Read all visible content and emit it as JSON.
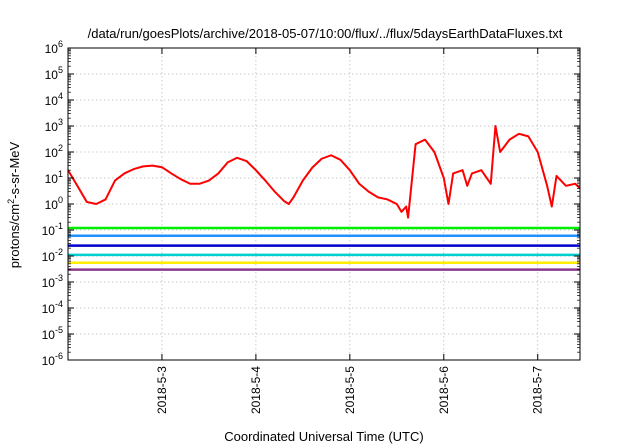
{
  "chart_data": {
    "type": "line",
    "title": "/data/run/goesPlots/archive/2018-05-07/10:00/flux/../flux/5daysEarthDataFluxes.txt",
    "xlabel": "Coordinated Universal Time (UTC)",
    "ylabel_base": "protons/cm",
    "ylabel_sup": "2",
    "ylabel_rest": "-s-sr-MeV",
    "y_scale": "log",
    "ylim": [
      1e-06,
      1000000.0
    ],
    "xlim_days": [
      0,
      5.45
    ],
    "x_date_origin": "2018-05-02",
    "grid": true,
    "legend": "none",
    "y_ticks": [
      {
        "base": "10",
        "exp": "-6",
        "value": 1e-06
      },
      {
        "base": "10",
        "exp": "-5",
        "value": 1e-05
      },
      {
        "base": "10",
        "exp": "-4",
        "value": 0.0001
      },
      {
        "base": "10",
        "exp": "-3",
        "value": 0.001
      },
      {
        "base": "10",
        "exp": "-2",
        "value": 0.01
      },
      {
        "base": "10",
        "exp": "-1",
        "value": 0.1
      },
      {
        "base": "10",
        "exp": "0",
        "value": 1.0
      },
      {
        "base": "10",
        "exp": "1",
        "value": 10.0
      },
      {
        "base": "10",
        "exp": "2",
        "value": 100.0
      },
      {
        "base": "10",
        "exp": "3",
        "value": 1000.0
      },
      {
        "base": "10",
        "exp": "4",
        "value": 10000.0
      },
      {
        "base": "10",
        "exp": "5",
        "value": 100000.0
      },
      {
        "base": "10",
        "exp": "6",
        "value": 1000000.0
      }
    ],
    "x_ticks": [
      {
        "label": "2018-5-3",
        "day": 1
      },
      {
        "label": "2018-5-4",
        "day": 2
      },
      {
        "label": "2018-5-5",
        "day": 3
      },
      {
        "label": "2018-5-6",
        "day": 4
      },
      {
        "label": "2018-5-7",
        "day": 5
      }
    ],
    "series": [
      {
        "color": "#ff0000",
        "x": [
          0,
          0.1,
          0.2,
          0.3,
          0.4,
          0.5,
          0.6,
          0.7,
          0.8,
          0.9,
          1.0,
          1.1,
          1.2,
          1.3,
          1.4,
          1.5,
          1.6,
          1.7,
          1.8,
          1.9,
          2.0,
          2.1,
          2.2,
          2.3,
          2.35,
          2.4,
          2.5,
          2.6,
          2.7,
          2.8,
          2.9,
          3.0,
          3.1,
          3.2,
          3.3,
          3.4,
          3.5,
          3.55,
          3.6,
          3.62,
          3.7,
          3.8,
          3.9,
          4.0,
          4.05,
          4.1,
          4.2,
          4.25,
          4.3,
          4.4,
          4.5,
          4.55,
          4.6,
          4.7,
          4.8,
          4.9,
          5.0,
          5.1,
          5.15,
          5.2,
          5.3,
          5.4,
          5.45
        ],
        "y": [
          20,
          5,
          1.2,
          1.0,
          1.5,
          8,
          15,
          22,
          28,
          30,
          26,
          15,
          9,
          6,
          6,
          8,
          15,
          40,
          60,
          45,
          20,
          8,
          3,
          1.3,
          1.0,
          1.8,
          8,
          25,
          55,
          75,
          50,
          20,
          6,
          3,
          1.8,
          1.5,
          1.0,
          0.5,
          0.8,
          0.3,
          200,
          300,
          100,
          10,
          1.0,
          15,
          20,
          5,
          15,
          20,
          6,
          1000,
          100,
          300,
          500,
          400,
          100,
          5,
          0.8,
          12,
          5,
          6,
          4
        ]
      },
      {
        "color": "#00ee00",
        "x": [
          0,
          0.5,
          1.0,
          1.5,
          2.0,
          2.5,
          3.0,
          3.5,
          4.0,
          4.5,
          5.0,
          5.45
        ],
        "y": [
          0.12,
          0.12,
          0.12,
          0.12,
          0.12,
          0.12,
          0.12,
          0.12,
          0.12,
          0.12,
          0.12,
          0.12
        ]
      },
      {
        "color": "#1e90ff",
        "x": [
          0,
          0.5,
          1.0,
          1.5,
          2.0,
          2.5,
          3.0,
          3.5,
          4.0,
          4.5,
          5.0,
          5.45
        ],
        "y": [
          0.06,
          0.06,
          0.06,
          0.06,
          0.06,
          0.06,
          0.06,
          0.06,
          0.06,
          0.06,
          0.06,
          0.06
        ]
      },
      {
        "color": "#0000cd",
        "x": [
          0,
          0.5,
          1.0,
          1.5,
          2.0,
          2.5,
          3.0,
          3.5,
          4.0,
          4.5,
          5.0,
          5.45
        ],
        "y": [
          0.025,
          0.025,
          0.025,
          0.025,
          0.025,
          0.025,
          0.025,
          0.025,
          0.025,
          0.025,
          0.025,
          0.025
        ]
      },
      {
        "color": "#00ced1",
        "x": [
          0,
          0.5,
          1.0,
          1.5,
          2.0,
          2.5,
          3.0,
          3.5,
          4.0,
          4.5,
          5.0,
          5.45
        ],
        "y": [
          0.011,
          0.011,
          0.011,
          0.011,
          0.011,
          0.011,
          0.011,
          0.011,
          0.011,
          0.011,
          0.011,
          0.011
        ]
      },
      {
        "color": "#ffee00",
        "x": [
          0,
          0.5,
          1.0,
          1.5,
          2.0,
          2.5,
          3.0,
          3.5,
          4.0,
          4.5,
          5.0,
          5.45
        ],
        "y": [
          0.0055,
          0.0055,
          0.0055,
          0.0055,
          0.0055,
          0.0055,
          0.0055,
          0.0055,
          0.0055,
          0.0055,
          0.0055,
          0.0055
        ]
      },
      {
        "color": "#8b3a8b",
        "x": [
          0,
          0.5,
          1.0,
          1.5,
          2.0,
          2.5,
          3.0,
          3.5,
          4.0,
          4.5,
          5.0,
          5.45
        ],
        "y": [
          0.003,
          0.003,
          0.003,
          0.003,
          0.003,
          0.003,
          0.003,
          0.003,
          0.003,
          0.003,
          0.003,
          0.003
        ]
      }
    ]
  }
}
